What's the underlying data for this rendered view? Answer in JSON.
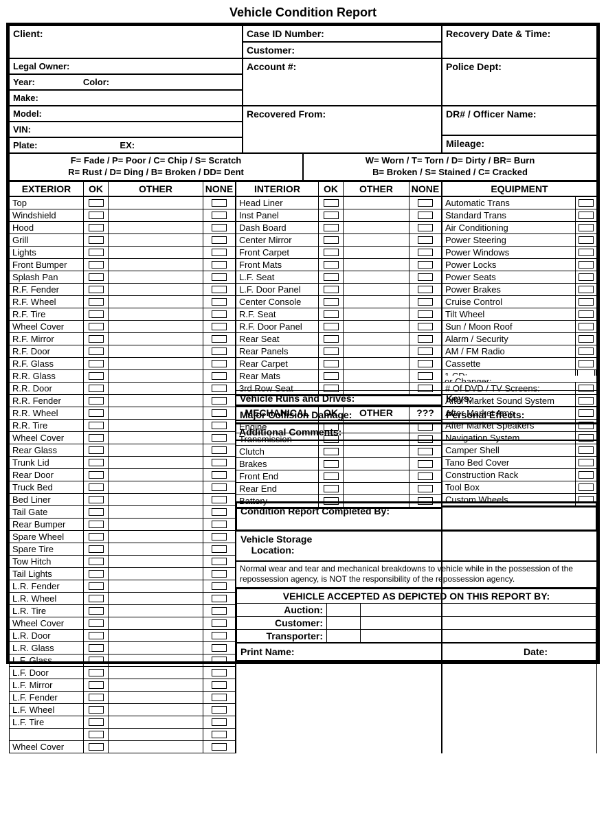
{
  "title": "Vehicle Condition Report",
  "header": {
    "client": "Client:",
    "caseId": "Case ID Number:",
    "recoveryDate": "Recovery Date & Time:",
    "customer": "Customer:",
    "legalOwner": "Legal Owner:",
    "policeDept": "Police Dept:",
    "year": "Year:",
    "color": "Color:",
    "account": "Account #:",
    "make": "Make:",
    "model": "Model:",
    "recoveredFrom": "Recovered From:",
    "drOfficer": "DR# / Officer Name:",
    "vin": "VIN:",
    "plate": "Plate:",
    "ex": "EX:",
    "mileage": "Mileage:"
  },
  "legend": {
    "exterior": "F= Fade / P= Poor / C= Chip / S= Scratch\nR= Rust / D= Ding / B= Broken / DD= Dent",
    "interior": "W= Worn / T= Torn / D= Dirty / BR= Burn\nB= Broken / S= Stained / C= Cracked"
  },
  "cols": {
    "exterior": "EXTERIOR",
    "ok": "OK",
    "other": "OTHER",
    "none": "NONE",
    "interior": "INTERIOR",
    "mechanical": "MECHANICAL",
    "qqq": "???",
    "equipment": "EQUIPMENT"
  },
  "exteriorItems": [
    "Top",
    "Windshield",
    "Hood",
    "Grill",
    "Lights",
    "Front Bumper",
    "Splash Pan",
    "R.F. Fender",
    "R.F. Wheel",
    "R.F. Tire",
    "Wheel Cover",
    "R.F. Mirror",
    "R.F. Door",
    "R.F. Glass",
    "R.R. Glass",
    "R.R. Door",
    "R.R. Fender",
    "R.R. Wheel",
    "R.R. Tire",
    "Wheel Cover",
    "Rear Glass",
    "Trunk Lid",
    "Rear Door",
    "Truck Bed",
    "Bed Liner",
    "Tail Gate",
    "Rear Bumper",
    "Spare Wheel",
    "Spare Tire",
    "Tow Hitch",
    "Tail Lights",
    " L.R. Fender",
    " L.R. Wheel",
    "L.R. Tire",
    "Wheel Cover",
    "L.R. Door",
    "L.R. Glass",
    "L.F. Glass",
    "L.F. Door",
    "L.F. Mirror",
    "L.F. Fender",
    "L.F. Wheel",
    "L.F. Tire",
    "",
    "Wheel Cover"
  ],
  "interiorItems": [
    "Head Liner",
    "Inst Panel",
    "Dash Board",
    "Center Mirror",
    "Front Carpet",
    "Front Mats",
    "L.F. Seat",
    "L.F. Door Panel",
    "Center Console",
    "R.F. Seat",
    "R.F. Door Panel",
    "Rear Seat",
    "Rear Panels",
    "Rear Carpet",
    "Rear Mats",
    "3rd Row Seat"
  ],
  "mechanicalItems": [
    "Engine",
    "Transmission",
    "Clutch",
    "Brakes",
    "Front End",
    "Rear End",
    "Battery"
  ],
  "equipmentItems": [
    "Automatic Trans",
    "Standard Trans",
    "Air Conditioning",
    "Power Steering",
    "Power Windows",
    "Power Locks",
    "Power Seats",
    "Power Brakes",
    "Cruise Control",
    "Tilt Wheel",
    "Sun / Moon Roof",
    "Alarm / Security",
    "AM / FM Radio",
    "Cassette"
  ],
  "cdRow": {
    "prefix": "1 CD:",
    "suffix": "or  Changer:"
  },
  "equipmentItems2": [
    "# Of  DVD  /  TV Screens:",
    "After Market Sound System",
    "After Market Amp",
    "After Market Speakers",
    "Navigation System",
    "Camper Shell",
    "Tano Bed Cover",
    "Construction Rack",
    "Tool Box",
    "Custom Wheels"
  ],
  "sections": {
    "runs": "Vehicle Runs and Drives:",
    "keys": "Keys:",
    "collision": "Major Collision Damage:",
    "personal": "Personal Effects:",
    "comments": "Additional Comments:",
    "completedBy": "Condition Report Completed By:",
    "storage": "Vehicle Storage",
    "location": "Location:",
    "disclaimer": "Normal wear and tear and mechanical breakdowns to vehicle while in the possession of the repossession agency, is NOT the responsibility of the repossession agency.",
    "acceptedTitle": "VEHICLE ACCEPTED AS DEPICTED ON THIS REPORT BY:",
    "auction": "Auction:",
    "customer": "Customer:",
    "transporter": "Transporter:",
    "printName": "Print Name:",
    "date": "Date:"
  },
  "colors": {
    "border": "#000000",
    "bg": "#ffffff"
  }
}
